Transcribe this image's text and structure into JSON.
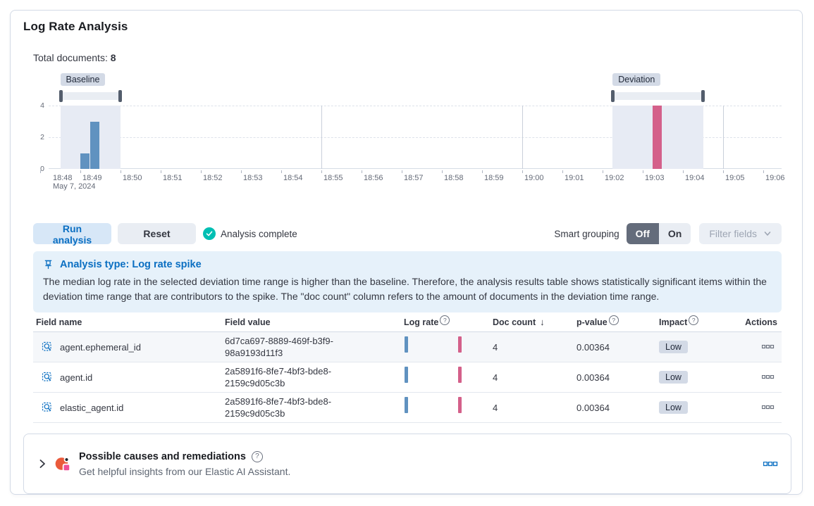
{
  "app": {
    "title": "Log Rate Analysis"
  },
  "summary": {
    "label": "Total documents:",
    "value": "8"
  },
  "colors": {
    "primary": "#0B6FC2",
    "success": "#00BFB3",
    "baseline_bar": "#6092C0",
    "deviation_bar": "#D4608A",
    "badge_bg": "#D3DAE6"
  },
  "icons": {
    "sort_desc": "↓",
    "help": "?"
  },
  "chart_data": {
    "type": "bar",
    "ylim": [
      0,
      4
    ],
    "y_ticks": [
      "4",
      "2",
      "0"
    ],
    "x_tick_labels": [
      "18:48",
      "18:49",
      "18:50",
      "18:51",
      "18:52",
      "18:53",
      "18:54",
      "18:55",
      "18:56",
      "18:57",
      "18:58",
      "18:59",
      "19:00",
      "19:01",
      "19:02",
      "19:03",
      "19:04",
      "19:05",
      "19:06"
    ],
    "x_date_label": "May 7, 2024",
    "bucket_minutes": 0.25,
    "series": [
      {
        "name": "baseline",
        "color": "#6092C0",
        "points": [
          {
            "time": "18:49:00",
            "minute": 1.0,
            "value": 1
          },
          {
            "time": "18:49:15",
            "minute": 1.25,
            "value": 3
          }
        ]
      },
      {
        "name": "deviation",
        "color": "#D4608A",
        "points": [
          {
            "time": "19:03:15",
            "minute": 15.25,
            "value": 4
          }
        ]
      }
    ],
    "windows": [
      {
        "label": "Baseline",
        "start_minute": 0.5,
        "end_minute": 2.0
      },
      {
        "label": "Deviation",
        "start_minute": 14.25,
        "end_minute": 16.5
      }
    ],
    "vgrid_minutes": [
      7,
      12,
      17
    ]
  },
  "controls": {
    "run_button": "Run analysis",
    "reset_button": "Reset",
    "status": "Analysis complete",
    "smart_grouping_label": "Smart grouping",
    "toggle_off": "Off",
    "toggle_on": "On",
    "selected": "Off",
    "filter_fields": "Filter fields"
  },
  "callout": {
    "title": "Analysis type: Log rate spike",
    "body": "The median log rate in the selected deviation time range is higher than the baseline. Therefore, the analysis results table shows statistically significant items within the deviation time range that are contributors to the spike. The \"doc count\" column refers to the amount of documents in the deviation time range."
  },
  "results_table": {
    "columns": [
      {
        "label": "Field name"
      },
      {
        "label": "Field value"
      },
      {
        "label": "Log rate",
        "info": true
      },
      {
        "label": "Doc count",
        "sort": "desc"
      },
      {
        "label": "p-value",
        "info": true
      },
      {
        "label": "Impact",
        "info": true
      },
      {
        "label": "Actions",
        "align": "right"
      }
    ],
    "rows": [
      {
        "field_name": "agent.ephemeral_id",
        "field_value": "6d7ca697-8889-469f-b3f9-98a9193d11f3",
        "doc_count": "4",
        "p_value": "0.00364",
        "impact": "Low",
        "highlighted": true
      },
      {
        "field_name": "agent.id",
        "field_value": "2a5891f6-8fe7-4bf3-bde8-2159c9d05c3b",
        "doc_count": "4",
        "p_value": "0.00364",
        "impact": "Low",
        "highlighted": false
      },
      {
        "field_name": "elastic_agent.id",
        "field_value": "2a5891f6-8fe7-4bf3-bde8-2159c9d05c3b",
        "doc_count": "4",
        "p_value": "0.00364",
        "impact": "Low",
        "highlighted": false
      }
    ]
  },
  "assistant_panel": {
    "title": "Possible causes and remediations",
    "subtitle": "Get helpful insights from our Elastic AI Assistant."
  }
}
